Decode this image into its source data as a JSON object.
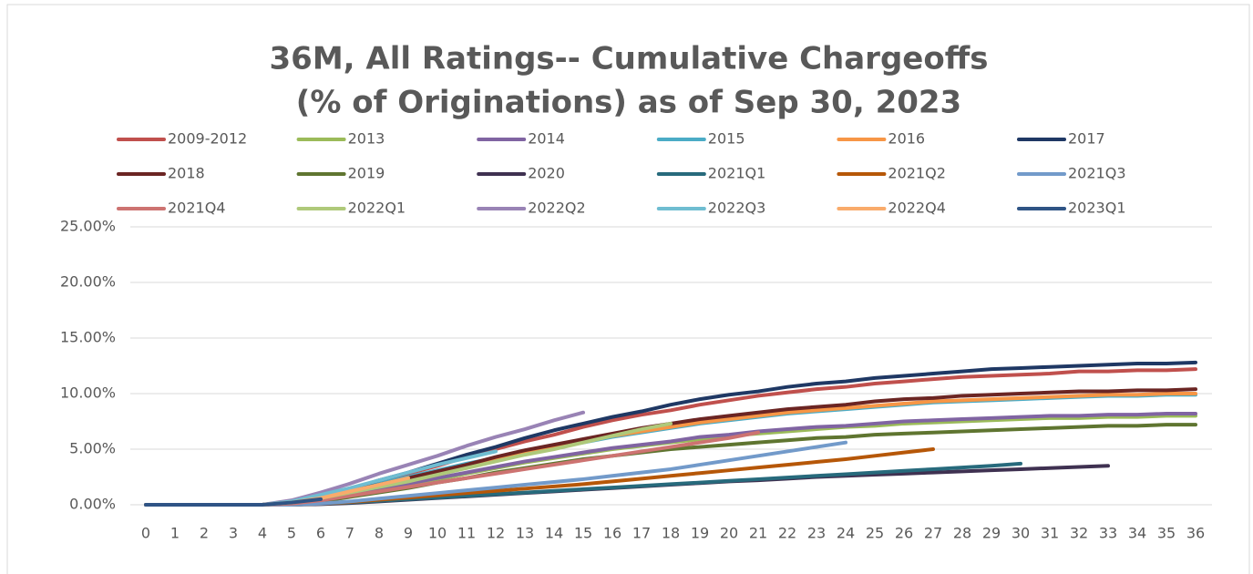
{
  "chart_data": {
    "type": "line",
    "title": [
      "36M, All Ratings-- Cumulative Chargeoffs",
      "(% of Originations) as of Sep 30, 2023"
    ],
    "x": [
      0,
      1,
      2,
      3,
      4,
      5,
      6,
      7,
      8,
      9,
      10,
      11,
      12,
      13,
      14,
      15,
      16,
      17,
      18,
      19,
      20,
      21,
      22,
      23,
      24,
      25,
      26,
      27,
      28,
      29,
      30,
      31,
      32,
      33,
      34,
      35,
      36
    ],
    "xlim": [
      0,
      36
    ],
    "ylim": [
      0,
      25
    ],
    "yticks": [
      {
        "value": 0,
        "label": "0.00%"
      },
      {
        "value": 5,
        "label": "5.00%"
      },
      {
        "value": 10,
        "label": "10.00%"
      },
      {
        "value": 15,
        "label": "15.00%"
      },
      {
        "value": 20,
        "label": "20.00%"
      },
      {
        "value": 25,
        "label": "25.00%"
      }
    ],
    "grid": true,
    "legend": "top",
    "series": [
      {
        "name": "2009-2012",
        "color": "#c0504d",
        "values": [
          0,
          0,
          0,
          0,
          0,
          0.2,
          0.7,
          1.3,
          2.1,
          2.8,
          3.5,
          4.3,
          5.0,
          5.7,
          6.3,
          7.0,
          7.6,
          8.1,
          8.5,
          9.0,
          9.4,
          9.8,
          10.1,
          10.4,
          10.6,
          10.9,
          11.1,
          11.3,
          11.5,
          11.6,
          11.7,
          11.8,
          12.0,
          12.0,
          12.1,
          12.1,
          12.2
        ]
      },
      {
        "name": "2013",
        "color": "#9bbb59",
        "values": [
          0,
          0,
          0,
          0,
          0,
          0.2,
          0.5,
          0.9,
          1.4,
          1.8,
          2.3,
          2.8,
          3.3,
          3.8,
          4.2,
          4.6,
          5.0,
          5.3,
          5.6,
          5.9,
          6.2,
          6.4,
          6.6,
          6.8,
          7.0,
          7.1,
          7.3,
          7.4,
          7.5,
          7.6,
          7.7,
          7.8,
          7.8,
          7.9,
          7.9,
          8.0,
          8.0
        ]
      },
      {
        "name": "2014",
        "color": "#8064a2",
        "values": [
          0,
          0,
          0,
          0,
          0,
          0.2,
          0.5,
          0.9,
          1.4,
          1.9,
          2.4,
          2.9,
          3.4,
          3.9,
          4.3,
          4.7,
          5.1,
          5.4,
          5.7,
          6.1,
          6.3,
          6.6,
          6.8,
          7.0,
          7.1,
          7.3,
          7.5,
          7.6,
          7.7,
          7.8,
          7.9,
          8.0,
          8.0,
          8.1,
          8.1,
          8.2,
          8.2
        ]
      },
      {
        "name": "2015",
        "color": "#4bacc6",
        "values": [
          0,
          0,
          0,
          0,
          0,
          0.2,
          0.7,
          1.2,
          1.9,
          2.5,
          3.1,
          3.7,
          4.2,
          4.7,
          5.2,
          5.6,
          6.1,
          6.5,
          6.9,
          7.3,
          7.6,
          7.9,
          8.2,
          8.4,
          8.6,
          8.8,
          9.0,
          9.2,
          9.3,
          9.4,
          9.5,
          9.6,
          9.7,
          9.8,
          9.8,
          9.9,
          9.9
        ]
      },
      {
        "name": "2016",
        "color": "#f79646",
        "values": [
          0,
          0,
          0,
          0,
          0,
          0.2,
          0.6,
          1.1,
          1.7,
          2.3,
          2.9,
          3.5,
          4.1,
          4.7,
          5.2,
          5.7,
          6.2,
          6.6,
          7.0,
          7.4,
          7.7,
          8.0,
          8.3,
          8.5,
          8.7,
          8.9,
          9.1,
          9.3,
          9.4,
          9.5,
          9.6,
          9.7,
          9.8,
          9.9,
          9.9,
          10.0,
          10.0
        ]
      },
      {
        "name": "2017",
        "color": "#1f3864",
        "values": [
          0,
          0,
          0,
          0,
          0,
          0.3,
          0.8,
          1.4,
          2.2,
          2.9,
          3.7,
          4.5,
          5.2,
          6.0,
          6.7,
          7.3,
          7.9,
          8.4,
          9.0,
          9.5,
          9.9,
          10.2,
          10.6,
          10.9,
          11.1,
          11.4,
          11.6,
          11.8,
          12.0,
          12.2,
          12.3,
          12.4,
          12.5,
          12.6,
          12.7,
          12.7,
          12.8
        ]
      },
      {
        "name": "2018",
        "color": "#6b2523",
        "values": [
          0,
          0,
          0,
          0,
          0,
          0.2,
          0.6,
          1.1,
          1.8,
          2.4,
          3.0,
          3.6,
          4.3,
          4.9,
          5.4,
          5.9,
          6.4,
          6.9,
          7.3,
          7.7,
          8.0,
          8.3,
          8.6,
          8.8,
          9.0,
          9.3,
          9.5,
          9.6,
          9.8,
          9.9,
          10.0,
          10.1,
          10.2,
          10.2,
          10.3,
          10.3,
          10.4
        ]
      },
      {
        "name": "2019",
        "color": "#5f7530",
        "values": [
          0,
          0,
          0,
          0,
          0,
          0.1,
          0.3,
          0.7,
          1.1,
          1.5,
          2.0,
          2.4,
          2.9,
          3.3,
          3.7,
          4.1,
          4.4,
          4.7,
          5.0,
          5.2,
          5.4,
          5.6,
          5.8,
          6.0,
          6.1,
          6.3,
          6.4,
          6.5,
          6.6,
          6.7,
          6.8,
          6.9,
          7.0,
          7.1,
          7.1,
          7.2,
          7.2
        ]
      },
      {
        "name": "2020",
        "color": "#3f3151",
        "values": [
          0,
          0,
          0,
          0,
          0,
          0,
          0.05,
          0.15,
          0.3,
          0.45,
          0.6,
          0.75,
          0.9,
          1.05,
          1.2,
          1.35,
          1.5,
          1.65,
          1.8,
          1.95,
          2.1,
          2.2,
          2.35,
          2.5,
          2.6,
          2.7,
          2.8,
          2.9,
          3.0,
          3.1,
          3.2,
          3.3,
          3.4,
          3.5,
          null,
          null,
          null
        ]
      },
      {
        "name": "2021Q1",
        "color": "#276a7c",
        "values": [
          0,
          0,
          0,
          0,
          0,
          0,
          0.1,
          0.2,
          0.35,
          0.5,
          0.65,
          0.8,
          0.95,
          1.1,
          1.25,
          1.4,
          1.55,
          1.7,
          1.85,
          2.0,
          2.15,
          2.3,
          2.45,
          2.6,
          2.75,
          2.9,
          3.05,
          3.2,
          3.35,
          3.5,
          3.7,
          null,
          null,
          null,
          null,
          null,
          null
        ]
      },
      {
        "name": "2021Q2",
        "color": "#b65708",
        "values": [
          0,
          0,
          0,
          0,
          0,
          0,
          0.1,
          0.25,
          0.45,
          0.65,
          0.85,
          1.05,
          1.25,
          1.45,
          1.65,
          1.85,
          2.1,
          2.35,
          2.6,
          2.85,
          3.1,
          3.35,
          3.6,
          3.85,
          4.1,
          4.4,
          4.7,
          5.0,
          null,
          null,
          null,
          null,
          null,
          null,
          null,
          null,
          null
        ]
      },
      {
        "name": "2021Q3",
        "color": "#729aca",
        "values": [
          0,
          0,
          0,
          0,
          0,
          0,
          0.1,
          0.3,
          0.55,
          0.8,
          1.05,
          1.3,
          1.55,
          1.8,
          2.05,
          2.3,
          2.6,
          2.9,
          3.2,
          3.6,
          4.0,
          4.4,
          4.8,
          5.2,
          5.6,
          null,
          null,
          null,
          null,
          null,
          null,
          null,
          null,
          null,
          null,
          null,
          null
        ]
      },
      {
        "name": "2021Q4",
        "color": "#cd7371",
        "values": [
          0,
          0,
          0,
          0,
          0,
          0.1,
          0.4,
          0.8,
          1.2,
          1.6,
          2.0,
          2.4,
          2.8,
          3.2,
          3.6,
          4.0,
          4.4,
          4.8,
          5.2,
          5.6,
          6.0,
          6.5,
          null,
          null,
          null,
          null,
          null,
          null,
          null,
          null,
          null,
          null,
          null,
          null,
          null,
          null,
          null
        ]
      },
      {
        "name": "2022Q1",
        "color": "#afc97a",
        "values": [
          0,
          0,
          0,
          0,
          0,
          0.2,
          0.6,
          1.1,
          1.6,
          2.1,
          2.7,
          3.3,
          3.9,
          4.5,
          5.0,
          5.6,
          6.2,
          6.8,
          7.3,
          null,
          null,
          null,
          null,
          null,
          null,
          null,
          null,
          null,
          null,
          null,
          null,
          null,
          null,
          null,
          null,
          null,
          null
        ]
      },
      {
        "name": "2022Q2",
        "color": "#9983b5",
        "values": [
          0,
          0,
          0,
          0,
          0,
          0.4,
          1.1,
          1.9,
          2.8,
          3.6,
          4.4,
          5.3,
          6.1,
          6.8,
          7.6,
          8.3,
          null,
          null,
          null,
          null,
          null,
          null,
          null,
          null,
          null,
          null,
          null,
          null,
          null,
          null,
          null,
          null,
          null,
          null,
          null,
          null,
          null
        ]
      },
      {
        "name": "2022Q3",
        "color": "#6fbdd1",
        "values": [
          0,
          0,
          0,
          0,
          0,
          0.3,
          0.9,
          1.5,
          2.2,
          2.9,
          3.6,
          4.2,
          4.8,
          null,
          null,
          null,
          null,
          null,
          null,
          null,
          null,
          null,
          null,
          null,
          null,
          null,
          null,
          null,
          null,
          null,
          null,
          null,
          null,
          null,
          null,
          null,
          null
        ]
      },
      {
        "name": "2022Q4",
        "color": "#f9ab6b",
        "values": [
          0,
          0,
          0,
          0,
          0,
          0.2,
          0.6,
          1.2,
          1.8,
          2.4,
          null,
          null,
          null,
          null,
          null,
          null,
          null,
          null,
          null,
          null,
          null,
          null,
          null,
          null,
          null,
          null,
          null,
          null,
          null,
          null,
          null,
          null,
          null,
          null,
          null,
          null,
          null
        ]
      },
      {
        "name": "2023Q1",
        "color": "#2f5485",
        "values": [
          0,
          0,
          0,
          0,
          0,
          0.2,
          0.5,
          null,
          null,
          null,
          null,
          null,
          null,
          null,
          null,
          null,
          null,
          null,
          null,
          null,
          null,
          null,
          null,
          null,
          null,
          null,
          null,
          null,
          null,
          null,
          null,
          null,
          null,
          null,
          null,
          null,
          null
        ]
      }
    ]
  }
}
